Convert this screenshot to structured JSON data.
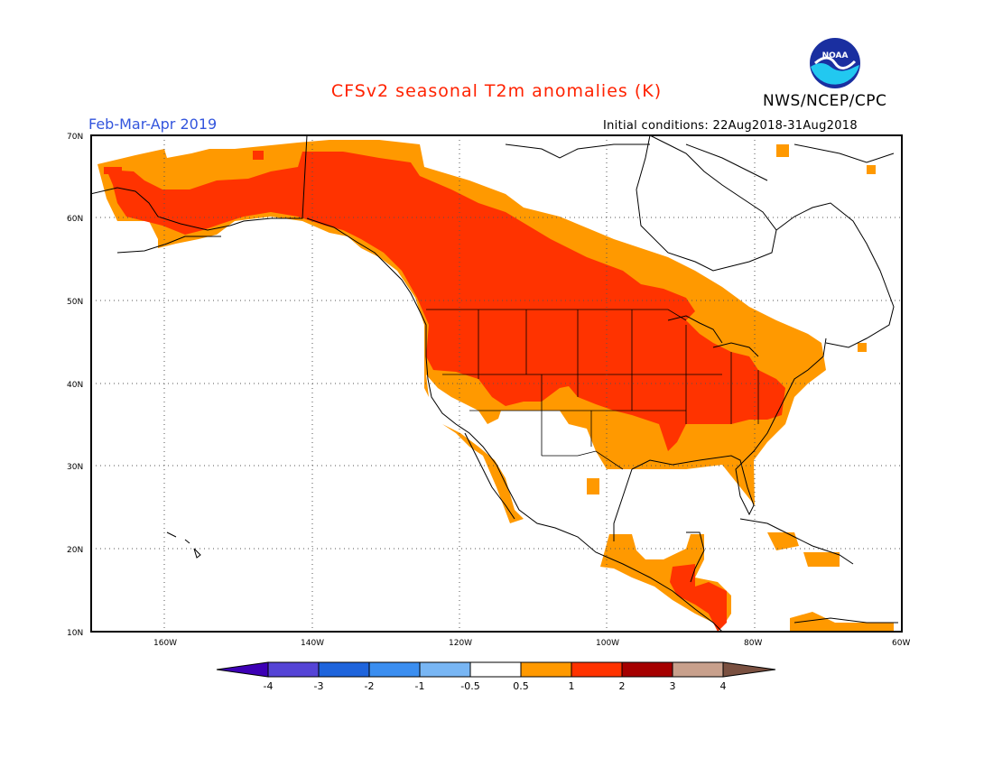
{
  "header": {
    "title": "CFSv2 seasonal T2m anomalies (K)",
    "period": "Feb-Mar-Apr 2019",
    "org": "NWS/NCEP/CPC",
    "initial_conditions": "Initial conditions: 22Aug2018-31Aug2018",
    "logo_text": "NOAA"
  },
  "map": {
    "projection": "lat-lon",
    "lon_range": [
      -170,
      -60
    ],
    "lat_range": [
      10,
      70
    ],
    "grid": "dotted",
    "lat_ticks": [
      "70N",
      "60N",
      "50N",
      "40N",
      "30N",
      "20N",
      "10N"
    ],
    "lon_ticks": [
      "160W",
      "140W",
      "120W",
      "100W",
      "80W",
      "60W"
    ],
    "colors": {
      "0.5-1": "#ff9900",
      "1-2": "#ff3300",
      "2-3": "#a50000"
    }
  },
  "colorbar": {
    "labels": [
      "-4",
      "-3",
      "-2",
      "-1",
      "-0.5",
      "0.5",
      "1",
      "2",
      "3",
      "4"
    ],
    "colors": [
      "#3d00b5",
      "#5544d6",
      "#1e64dc",
      "#3b8ef0",
      "#78b6f4",
      "#ffffff",
      "#ff9900",
      "#ff3300",
      "#a50000",
      "#c8a08c",
      "#7a5040"
    ]
  }
}
